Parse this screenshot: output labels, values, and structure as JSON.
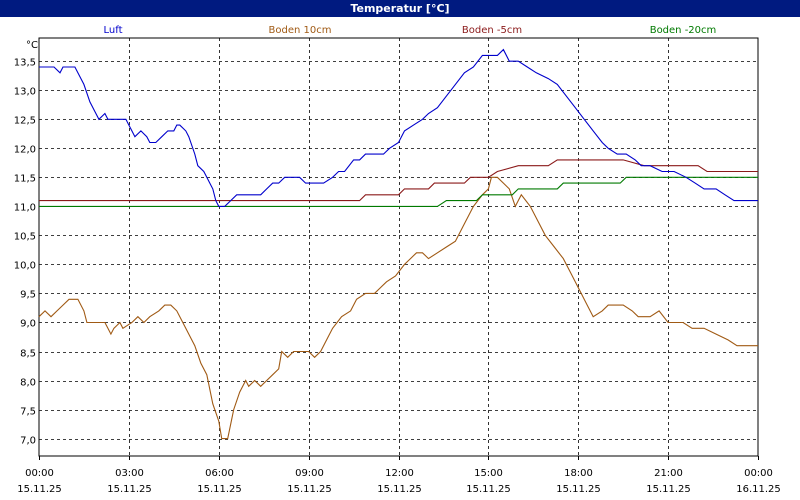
{
  "window": {
    "title": "Temperatur [°C]"
  },
  "chart_data": {
    "type": "line",
    "title": "Temperatur [°C]",
    "ylabel": "°C",
    "xlabel": "",
    "ylim": [
      6.7,
      13.9
    ],
    "yticks": [
      7.0,
      7.5,
      8.0,
      8.5,
      9.0,
      9.5,
      10.0,
      10.5,
      11.0,
      11.5,
      12.0,
      12.5,
      13.0,
      13.5
    ],
    "ytick_labels": [
      "7,0",
      "7,5",
      "8,0",
      "8,5",
      "9,0",
      "9,5",
      "10,0",
      "10,5",
      "11,0",
      "11,5",
      "12,0",
      "12,5",
      "13,0",
      "13,5"
    ],
    "xlim_hours": [
      0,
      24
    ],
    "xticks_hours": [
      0,
      3,
      6,
      9,
      12,
      15,
      18,
      21,
      24
    ],
    "xtick_times": [
      "00:00",
      "03:00",
      "06:00",
      "09:00",
      "12:00",
      "15:00",
      "18:00",
      "21:00",
      "00:00"
    ],
    "xtick_dates": [
      "15.11.25",
      "15.11.25",
      "15.11.25",
      "15.11.25",
      "15.11.25",
      "15.11.25",
      "15.11.25",
      "15.11.25",
      "16.11.25"
    ],
    "grid": true,
    "legend_placement": "top",
    "series": [
      {
        "name": "Luft",
        "color": "#0000cc",
        "points": [
          [
            0,
            13.4
          ],
          [
            0.5,
            13.4
          ],
          [
            0.7,
            13.3
          ],
          [
            0.8,
            13.4
          ],
          [
            1.2,
            13.4
          ],
          [
            1.5,
            13.1
          ],
          [
            1.7,
            12.8
          ],
          [
            1.9,
            12.6
          ],
          [
            2.0,
            12.5
          ],
          [
            2.2,
            12.6
          ],
          [
            2.3,
            12.5
          ],
          [
            2.9,
            12.5
          ],
          [
            3.1,
            12.3
          ],
          [
            3.2,
            12.2
          ],
          [
            3.4,
            12.3
          ],
          [
            3.6,
            12.2
          ],
          [
            3.7,
            12.1
          ],
          [
            3.9,
            12.1
          ],
          [
            4.1,
            12.2
          ],
          [
            4.3,
            12.3
          ],
          [
            4.5,
            12.3
          ],
          [
            4.6,
            12.4
          ],
          [
            4.7,
            12.4
          ],
          [
            4.9,
            12.3
          ],
          [
            5.0,
            12.2
          ],
          [
            5.2,
            11.9
          ],
          [
            5.3,
            11.7
          ],
          [
            5.5,
            11.6
          ],
          [
            5.6,
            11.5
          ],
          [
            5.7,
            11.4
          ],
          [
            5.8,
            11.3
          ],
          [
            5.9,
            11.1
          ],
          [
            6.0,
            11.0
          ],
          [
            6.2,
            11.0
          ],
          [
            6.4,
            11.1
          ],
          [
            6.6,
            11.2
          ],
          [
            7.4,
            11.2
          ],
          [
            7.6,
            11.3
          ],
          [
            7.8,
            11.4
          ],
          [
            8.0,
            11.4
          ],
          [
            8.2,
            11.5
          ],
          [
            8.7,
            11.5
          ],
          [
            8.9,
            11.4
          ],
          [
            9.5,
            11.4
          ],
          [
            9.8,
            11.5
          ],
          [
            10.0,
            11.6
          ],
          [
            10.2,
            11.6
          ],
          [
            10.5,
            11.8
          ],
          [
            10.7,
            11.8
          ],
          [
            10.9,
            11.9
          ],
          [
            11.5,
            11.9
          ],
          [
            11.7,
            12.0
          ],
          [
            12.0,
            12.1
          ],
          [
            12.2,
            12.3
          ],
          [
            12.5,
            12.4
          ],
          [
            12.8,
            12.5
          ],
          [
            13.0,
            12.6
          ],
          [
            13.3,
            12.7
          ],
          [
            13.6,
            12.9
          ],
          [
            13.9,
            13.1
          ],
          [
            14.2,
            13.3
          ],
          [
            14.5,
            13.4
          ],
          [
            14.8,
            13.6
          ],
          [
            15.3,
            13.6
          ],
          [
            15.5,
            13.7
          ],
          [
            15.7,
            13.5
          ],
          [
            16.0,
            13.5
          ],
          [
            16.3,
            13.4
          ],
          [
            16.6,
            13.3
          ],
          [
            17.0,
            13.2
          ],
          [
            17.3,
            13.1
          ],
          [
            17.6,
            12.9
          ],
          [
            17.9,
            12.7
          ],
          [
            18.2,
            12.5
          ],
          [
            18.5,
            12.3
          ],
          [
            18.8,
            12.1
          ],
          [
            19.0,
            12.0
          ],
          [
            19.3,
            11.9
          ],
          [
            19.6,
            11.9
          ],
          [
            19.9,
            11.8
          ],
          [
            20.1,
            11.7
          ],
          [
            20.4,
            11.7
          ],
          [
            20.8,
            11.6
          ],
          [
            21.2,
            11.6
          ],
          [
            21.6,
            11.5
          ],
          [
            21.9,
            11.4
          ],
          [
            22.2,
            11.3
          ],
          [
            22.6,
            11.3
          ],
          [
            22.9,
            11.2
          ],
          [
            23.2,
            11.1
          ],
          [
            23.5,
            11.1
          ],
          [
            24.0,
            11.1
          ]
        ]
      },
      {
        "name": "Boden 10cm",
        "color": "#a05a14",
        "points": [
          [
            0,
            9.1
          ],
          [
            0.2,
            9.2
          ],
          [
            0.4,
            9.1
          ],
          [
            0.6,
            9.2
          ],
          [
            0.8,
            9.3
          ],
          [
            1.0,
            9.4
          ],
          [
            1.3,
            9.4
          ],
          [
            1.5,
            9.2
          ],
          [
            1.6,
            9.0
          ],
          [
            2.2,
            9.0
          ],
          [
            2.3,
            8.9
          ],
          [
            2.4,
            8.8
          ],
          [
            2.5,
            8.9
          ],
          [
            2.7,
            9.0
          ],
          [
            2.8,
            8.9
          ],
          [
            3.1,
            9.0
          ],
          [
            3.3,
            9.1
          ],
          [
            3.5,
            9.0
          ],
          [
            3.7,
            9.1
          ],
          [
            4.0,
            9.2
          ],
          [
            4.2,
            9.3
          ],
          [
            4.4,
            9.3
          ],
          [
            4.6,
            9.2
          ],
          [
            4.8,
            9.0
          ],
          [
            5.0,
            8.8
          ],
          [
            5.2,
            8.6
          ],
          [
            5.4,
            8.3
          ],
          [
            5.6,
            8.1
          ],
          [
            5.8,
            7.6
          ],
          [
            6.0,
            7.3
          ],
          [
            6.1,
            7.0
          ],
          [
            6.3,
            7.0
          ],
          [
            6.5,
            7.5
          ],
          [
            6.7,
            7.8
          ],
          [
            6.9,
            8.0
          ],
          [
            7.0,
            7.9
          ],
          [
            7.2,
            8.0
          ],
          [
            7.4,
            7.9
          ],
          [
            7.6,
            8.0
          ],
          [
            7.8,
            8.1
          ],
          [
            8.0,
            8.2
          ],
          [
            8.1,
            8.5
          ],
          [
            8.3,
            8.4
          ],
          [
            8.5,
            8.5
          ],
          [
            9.0,
            8.5
          ],
          [
            9.2,
            8.4
          ],
          [
            9.4,
            8.5
          ],
          [
            9.6,
            8.7
          ],
          [
            9.8,
            8.9
          ],
          [
            10.1,
            9.1
          ],
          [
            10.4,
            9.2
          ],
          [
            10.6,
            9.4
          ],
          [
            10.9,
            9.5
          ],
          [
            11.2,
            9.5
          ],
          [
            11.4,
            9.6
          ],
          [
            11.6,
            9.7
          ],
          [
            11.9,
            9.8
          ],
          [
            12.2,
            10.0
          ],
          [
            12.4,
            10.1
          ],
          [
            12.6,
            10.2
          ],
          [
            12.8,
            10.2
          ],
          [
            13.0,
            10.1
          ],
          [
            13.3,
            10.2
          ],
          [
            13.6,
            10.3
          ],
          [
            13.9,
            10.4
          ],
          [
            14.2,
            10.7
          ],
          [
            14.5,
            11.0
          ],
          [
            14.8,
            11.2
          ],
          [
            15.0,
            11.3
          ],
          [
            15.1,
            11.5
          ],
          [
            15.3,
            11.5
          ],
          [
            15.5,
            11.4
          ],
          [
            15.7,
            11.3
          ],
          [
            15.9,
            11.0
          ],
          [
            16.1,
            11.2
          ],
          [
            16.4,
            11.0
          ],
          [
            16.6,
            10.8
          ],
          [
            16.9,
            10.5
          ],
          [
            17.2,
            10.3
          ],
          [
            17.5,
            10.1
          ],
          [
            17.8,
            9.8
          ],
          [
            18.1,
            9.5
          ],
          [
            18.3,
            9.3
          ],
          [
            18.5,
            9.1
          ],
          [
            18.8,
            9.2
          ],
          [
            19.0,
            9.3
          ],
          [
            19.5,
            9.3
          ],
          [
            19.8,
            9.2
          ],
          [
            20.0,
            9.1
          ],
          [
            20.4,
            9.1
          ],
          [
            20.7,
            9.2
          ],
          [
            21.0,
            9.0
          ],
          [
            21.5,
            9.0
          ],
          [
            21.8,
            8.9
          ],
          [
            22.2,
            8.9
          ],
          [
            22.6,
            8.8
          ],
          [
            23.0,
            8.7
          ],
          [
            23.3,
            8.6
          ],
          [
            24.0,
            8.6
          ]
        ]
      },
      {
        "name": "Boden -5cm",
        "color": "#8b1a1a",
        "points": [
          [
            0,
            11.1
          ],
          [
            10.7,
            11.1
          ],
          [
            10.9,
            11.2
          ],
          [
            12.0,
            11.2
          ],
          [
            12.2,
            11.3
          ],
          [
            13.0,
            11.3
          ],
          [
            13.2,
            11.4
          ],
          [
            14.2,
            11.4
          ],
          [
            14.4,
            11.5
          ],
          [
            15.0,
            11.5
          ],
          [
            15.3,
            11.6
          ],
          [
            16.0,
            11.7
          ],
          [
            17.0,
            11.7
          ],
          [
            17.3,
            11.8
          ],
          [
            19.5,
            11.8
          ],
          [
            20.2,
            11.7
          ],
          [
            22.0,
            11.7
          ],
          [
            22.3,
            11.6
          ],
          [
            24.0,
            11.6
          ]
        ]
      },
      {
        "name": "Boden -20cm",
        "color": "#007a00",
        "points": [
          [
            0,
            11.0
          ],
          [
            13.3,
            11.0
          ],
          [
            13.6,
            11.1
          ],
          [
            14.6,
            11.1
          ],
          [
            14.8,
            11.2
          ],
          [
            15.8,
            11.2
          ],
          [
            16.0,
            11.3
          ],
          [
            17.3,
            11.3
          ],
          [
            17.5,
            11.4
          ],
          [
            19.4,
            11.4
          ],
          [
            19.6,
            11.5
          ],
          [
            24.0,
            11.5
          ]
        ]
      }
    ]
  }
}
